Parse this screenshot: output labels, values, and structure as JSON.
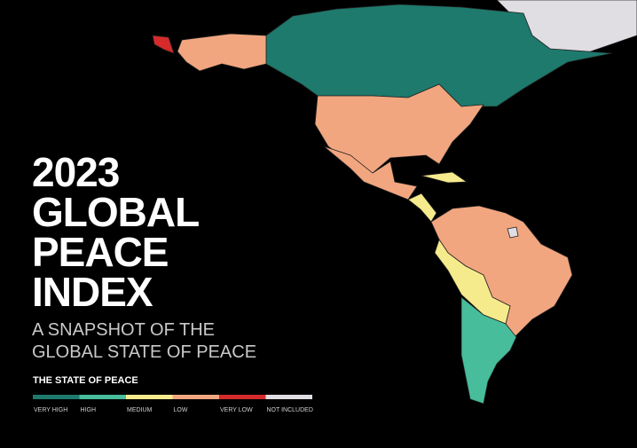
{
  "title": {
    "lines": [
      "2023",
      "GLOBAL",
      "PEACE",
      "INDEX"
    ]
  },
  "subtitle": {
    "lines": [
      "A SNAPSHOT OF THE",
      "GLOBAL STATE OF PEACE"
    ]
  },
  "legend": {
    "title": "THE STATE OF PEACE",
    "items": [
      {
        "label": "VERY HIGH",
        "color": "#1d7a6d"
      },
      {
        "label": "HIGH",
        "color": "#47bd9c"
      },
      {
        "label": "MEDIUM",
        "color": "#f6eb8c"
      },
      {
        "label": "LOW",
        "color": "#f2a67f"
      },
      {
        "label": "VERY LOW",
        "color": "#d62b2b"
      },
      {
        "label": "NOT INCLUDED",
        "color": "#e1dee3"
      }
    ]
  }
}
